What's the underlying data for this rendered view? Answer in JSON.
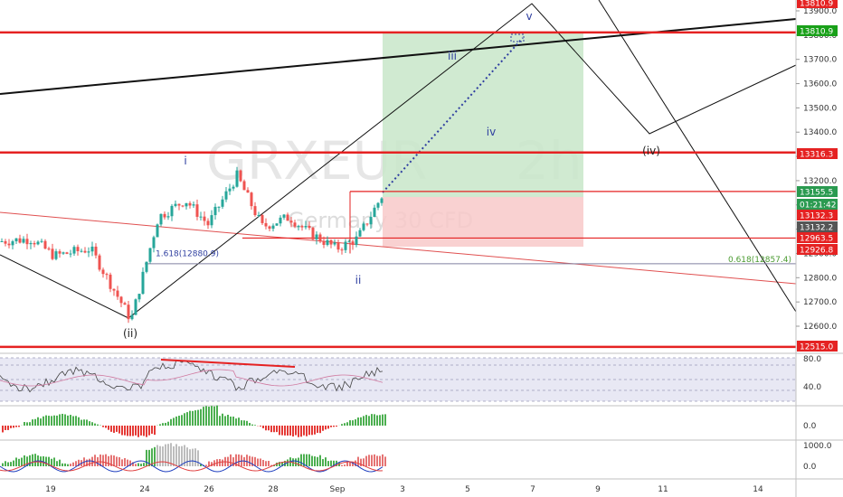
{
  "chart_data": {
    "type": "candlestick",
    "symbol": "GRXEUR",
    "timeframe": "2h",
    "description": "Germany 30 CFD",
    "x_ticks": [
      "19",
      "24",
      "26",
      "28",
      "Sep",
      "3",
      "5",
      "7",
      "9",
      "11",
      "14"
    ],
    "y_ticks": [
      12600,
      12700,
      12800,
      12900,
      13000,
      13100,
      13200,
      13300,
      13400,
      13500,
      13600,
      13700,
      13800,
      13900
    ],
    "y_range": [
      12480,
      13930
    ],
    "price_labels": [
      {
        "text": "13810.9",
        "value": 13810.9,
        "color": "#e52222"
      },
      {
        "text": "13810.9",
        "value": 13810.9,
        "color": "#19a019"
      },
      {
        "text": "13316.3",
        "value": 13316.3,
        "color": "#e52222"
      },
      {
        "text": "13155.5",
        "value": 13155.5,
        "color": "#2a9a50"
      },
      {
        "text": "01:21:42",
        "value": 13132.2,
        "color": "#2a9a50"
      },
      {
        "text": "13132.3",
        "value": 13132.3,
        "color": "#e52222"
      },
      {
        "text": "13132.2",
        "value": 13132.2,
        "color": "#555555"
      },
      {
        "text": "12963.5",
        "value": 12963.5,
        "color": "#e52222"
      },
      {
        "text": "12926.8",
        "value": 12926.8,
        "color": "#e52222"
      },
      {
        "text": "12515.0",
        "value": 12515.0,
        "color": "#e52222"
      }
    ],
    "horizontal_levels": [
      13810.9,
      13316.3,
      12515.0
    ],
    "fib_labels": [
      {
        "text": "1.618(12880.9)",
        "value": 12880.9,
        "color": "#2f3fa0"
      },
      {
        "text": "0.618(12857.4)",
        "value": 12857.4,
        "color": "#4a9a30"
      }
    ],
    "wave_labels": [
      {
        "text": "v",
        "color": "#2f3fa0"
      },
      {
        "text": "iii",
        "color": "#2f3fa0"
      },
      {
        "text": "iv",
        "color": "#2f3fa0"
      },
      {
        "text": "i",
        "color": "#2f3fa0"
      },
      {
        "text": "ii",
        "color": "#2f3fa0"
      },
      {
        "text": "(iv)",
        "color": "#222222"
      },
      {
        "text": "(ii)",
        "color": "#222222"
      }
    ],
    "rsi": {
      "ticks": [
        80.0,
        40.0
      ]
    },
    "macd_hist": {
      "ticks": [
        0.0
      ]
    },
    "osc": {
      "ticks": [
        1000.0,
        0.0
      ]
    },
    "colors": {
      "up": "#26a69a",
      "down": "#ef5350",
      "target_zone": "#c8e6c9",
      "stop_zone": "#f8c9c9"
    }
  }
}
